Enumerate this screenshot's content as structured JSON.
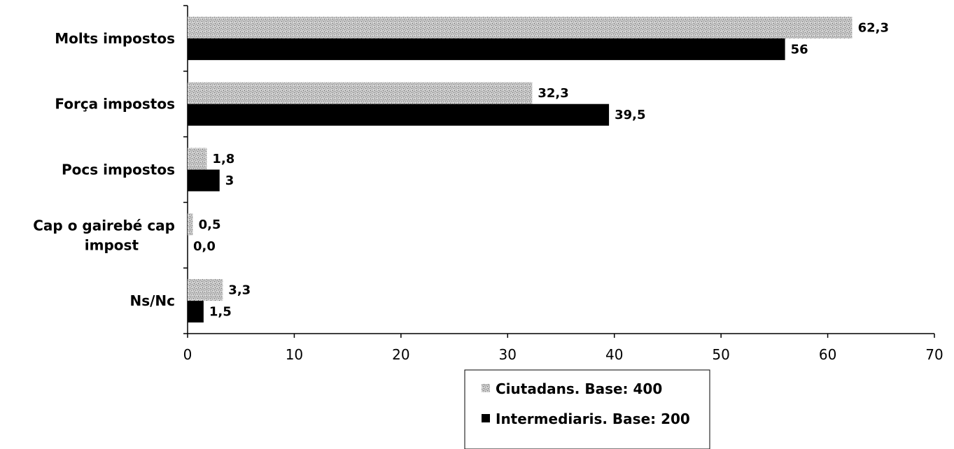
{
  "chart_data": {
    "type": "bar",
    "orientation": "horizontal",
    "categories": [
      [
        "Molts impostos"
      ],
      [
        "Força impostos"
      ],
      [
        "Pocs impostos"
      ],
      [
        "Cap o gairebé cap",
        "impost"
      ],
      [
        "Ns/Nc"
      ]
    ],
    "series": [
      {
        "name": "Ciutadans. Base: 400",
        "values": [
          62.3,
          32.3,
          1.8,
          0.5,
          3.3
        ],
        "labels": [
          "62,3",
          "32,3",
          "1,8",
          "0,5",
          "3,3"
        ],
        "color": "#b8b8b8",
        "pattern": "speckled"
      },
      {
        "name": "Intermediaris. Base: 200",
        "values": [
          56,
          39.5,
          3,
          0,
          1.5
        ],
        "labels": [
          "56",
          "39,5",
          "3",
          "0,0",
          "1,5"
        ],
        "color": "#000000",
        "pattern": "solid"
      }
    ],
    "xlim": [
      0,
      70
    ],
    "xticks": [
      0,
      10,
      20,
      30,
      40,
      50,
      60,
      70
    ],
    "title": "",
    "xlabel": "",
    "ylabel": "",
    "grid": false,
    "legend_position": "bottom-right"
  }
}
